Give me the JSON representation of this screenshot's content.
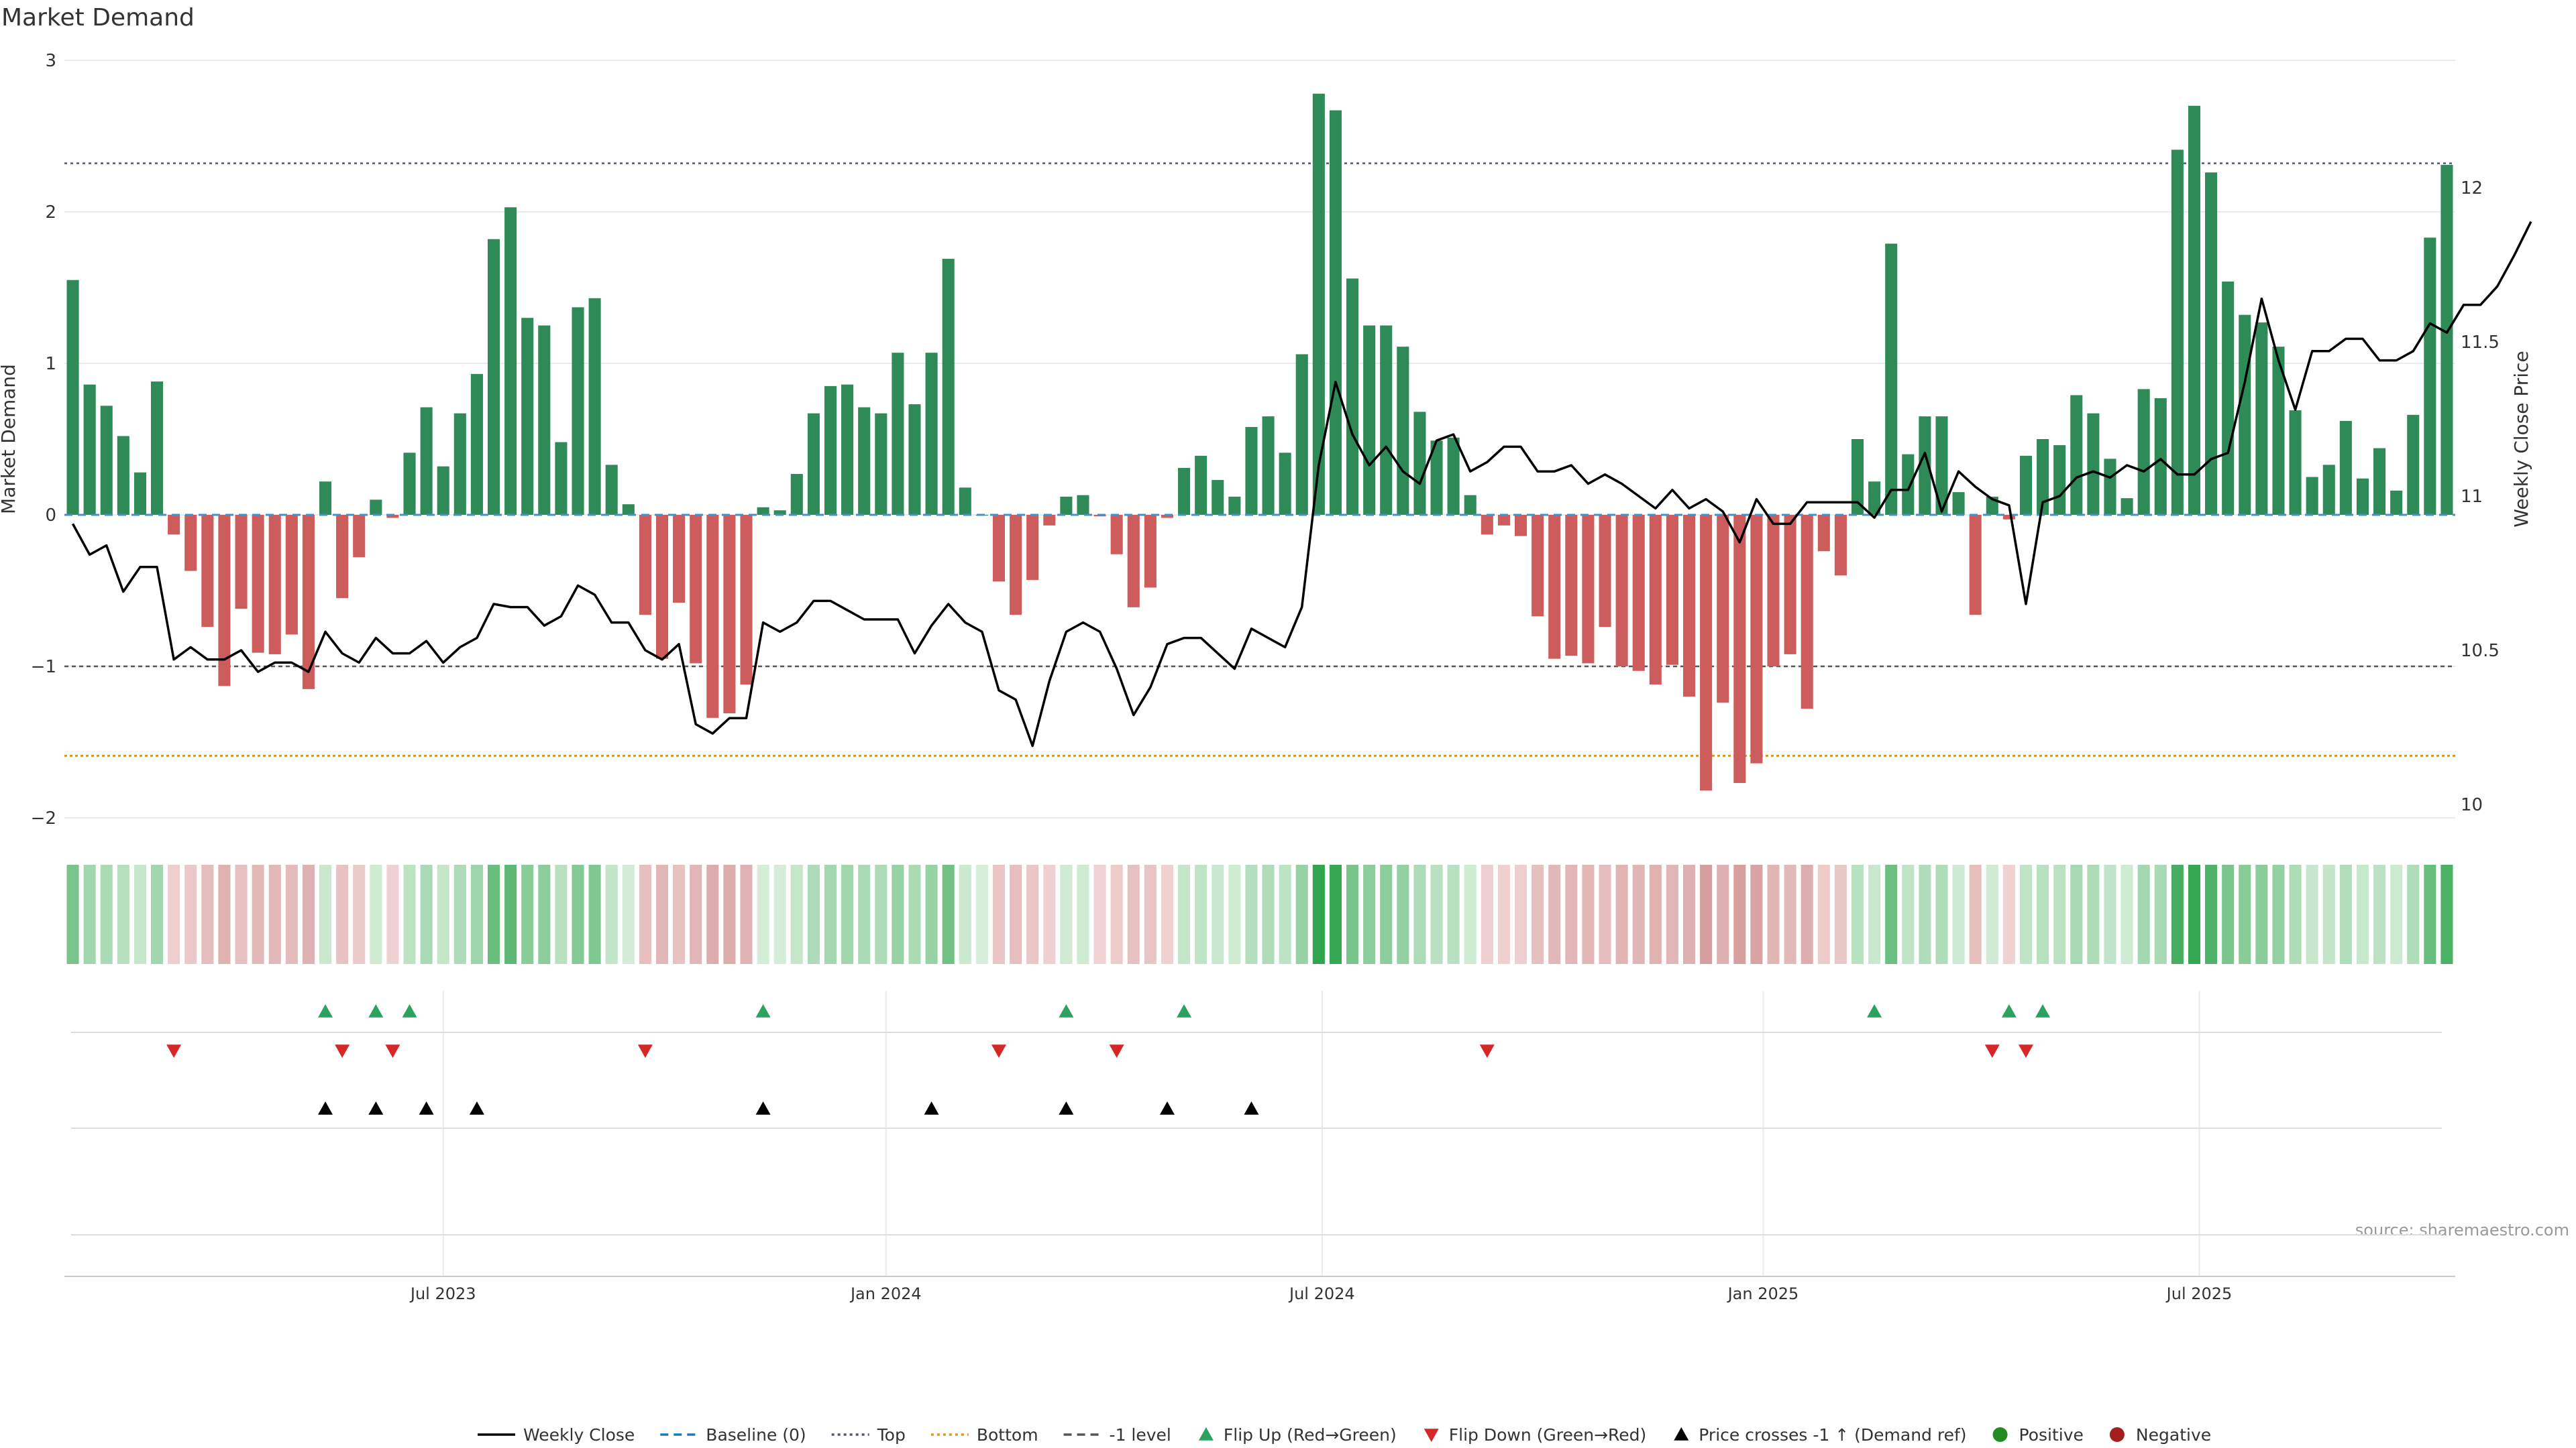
{
  "chart_data": {
    "type": "bar",
    "title": "Market Demand",
    "ylabel": "Market Demand",
    "y2label": "Weekly Close Price",
    "ylim": [
      -2,
      3
    ],
    "y2lim": [
      10,
      12.5
    ],
    "yticks": [
      3,
      2,
      1,
      0,
      -1,
      -2
    ],
    "ytick_labels": [
      "3",
      "2",
      "1",
      "0",
      "−1",
      "−2"
    ],
    "y2ticks": [
      10,
      10.5,
      11,
      11.5,
      12
    ],
    "y2tick_labels": [
      "10",
      "10.5",
      "11",
      "11.5",
      "12"
    ],
    "x_ticks": [
      {
        "week": 22,
        "label": "Jul 2023"
      },
      {
        "week": 48.3,
        "label": "Jan 2024"
      },
      {
        "week": 74.2,
        "label": "Jul 2024"
      },
      {
        "week": 100.4,
        "label": "Jan 2025"
      },
      {
        "week": 126.3,
        "label": "Jul 2025"
      }
    ],
    "reference_lines": {
      "top": 2.32,
      "bottom": -1.59,
      "minus_one": -1,
      "baseline": 0
    },
    "demand": [
      1.55,
      0.86,
      0.72,
      0.52,
      0.28,
      0.88,
      -0.13,
      -0.37,
      -0.74,
      -1.13,
      -0.62,
      -0.91,
      -0.92,
      -0.79,
      -1.15,
      0.22,
      -0.55,
      -0.28,
      0.1,
      -0.02,
      0.41,
      0.71,
      0.32,
      0.67,
      0.93,
      1.82,
      2.03,
      1.3,
      1.25,
      0.48,
      1.37,
      1.43,
      0.33,
      0.07,
      -0.66,
      -0.95,
      -0.58,
      -0.98,
      -1.34,
      -1.31,
      -1.12,
      0.05,
      0.03,
      0.27,
      0.67,
      0.85,
      0.86,
      0.71,
      0.67,
      1.07,
      0.73,
      1.07,
      1.69,
      0.18,
      0.0,
      -0.44,
      -0.66,
      -0.43,
      -0.07,
      0.12,
      0.13,
      -0.01,
      -0.26,
      -0.61,
      -0.48,
      -0.02,
      0.31,
      0.39,
      0.23,
      0.12,
      0.58,
      0.65,
      0.41,
      1.06,
      2.78,
      2.67,
      1.56,
      1.25,
      1.25,
      1.11,
      0.68,
      0.49,
      0.51,
      0.13,
      -0.13,
      -0.07,
      -0.14,
      -0.67,
      -0.95,
      -0.93,
      -0.98,
      -0.74,
      -1.0,
      -1.03,
      -1.12,
      -0.99,
      -1.2,
      -1.82,
      -1.24,
      -1.77,
      -1.64,
      -1.0,
      -0.92,
      -1.28,
      -0.24,
      -0.4,
      0.5,
      0.22,
      1.79,
      0.4,
      0.65,
      0.65,
      0.15,
      -0.66,
      0.12,
      -0.03,
      0.39,
      0.5,
      0.46,
      0.79,
      0.67,
      0.37,
      0.11,
      0.83,
      0.77,
      2.41,
      2.7,
      2.26,
      1.54,
      1.32,
      1.27,
      1.11,
      0.69,
      0.25,
      0.33,
      0.62,
      0.24,
      0.44,
      0.16,
      0.66,
      1.83,
      2.31
    ],
    "weekly_close": [
      10.91,
      10.81,
      10.84,
      10.69,
      10.77,
      10.77,
      10.47,
      10.51,
      10.47,
      10.47,
      10.5,
      10.43,
      10.46,
      10.46,
      10.43,
      10.56,
      10.49,
      10.46,
      10.54,
      10.49,
      10.49,
      10.53,
      10.46,
      10.51,
      10.54,
      10.65,
      10.64,
      10.64,
      10.58,
      10.61,
      10.71,
      10.68,
      10.59,
      10.59,
      10.5,
      10.47,
      10.52,
      10.26,
      10.23,
      10.28,
      10.28,
      10.59,
      10.56,
      10.59,
      10.66,
      10.66,
      10.63,
      10.6,
      10.6,
      10.6,
      10.49,
      10.58,
      10.65,
      10.59,
      10.56,
      10.37,
      10.34,
      10.19,
      10.4,
      10.56,
      10.59,
      10.56,
      10.44,
      10.29,
      10.38,
      10.52,
      10.54,
      10.54,
      10.49,
      10.44,
      10.57,
      10.54,
      10.51,
      10.64,
      11.1,
      11.37,
      11.2,
      11.1,
      11.16,
      11.08,
      11.04,
      11.18,
      11.2,
      11.08,
      11.11,
      11.16,
      11.16,
      11.08,
      11.08,
      11.1,
      11.04,
      11.07,
      11.04,
      11.0,
      10.96,
      11.02,
      10.96,
      10.99,
      10.95,
      10.85,
      10.99,
      10.91,
      10.91,
      10.98,
      10.98,
      10.98,
      10.98,
      10.93,
      11.02,
      11.02,
      11.14,
      10.95,
      11.08,
      11.03,
      10.99,
      10.97,
      10.65,
      10.98,
      11.0,
      11.06,
      11.08,
      11.06,
      11.1,
      11.08,
      11.12,
      11.07,
      11.07,
      11.12,
      11.14,
      11.37,
      11.64,
      11.44,
      11.28,
      11.47,
      11.47,
      11.51,
      11.51,
      11.44,
      11.44,
      11.47,
      11.56,
      11.53,
      11.62,
      11.62,
      11.68,
      11.78,
      11.89
    ],
    "flip_up_weeks": [
      15,
      18,
      20,
      41,
      59,
      66,
      107,
      115,
      117
    ],
    "flip_down_weeks": [
      6,
      16,
      19,
      34,
      55,
      62,
      84,
      114,
      116
    ],
    "price_cross_weeks": [
      15,
      18,
      21,
      24,
      41,
      51,
      59,
      65,
      70
    ],
    "legend": [
      {
        "label": "Weekly Close",
        "kind": "solid-line",
        "color": "#000000"
      },
      {
        "label": "Baseline (0)",
        "kind": "dashed-line",
        "color": "#1f77b4"
      },
      {
        "label": "Top",
        "kind": "dotted-line",
        "color": "#555577"
      },
      {
        "label": "Bottom",
        "kind": "dotted-line",
        "color": "#d99a1e"
      },
      {
        "label": "-1 level",
        "kind": "dashed-line",
        "color": "#555555"
      },
      {
        "label": "Flip Up (Red→Green)",
        "kind": "triangle-up",
        "color": "#2ca25f"
      },
      {
        "label": "Flip Down (Green→Red)",
        "kind": "triangle-down",
        "color": "#d62728"
      },
      {
        "label": "Price crosses -1 ↑ (Demand ref)",
        "kind": "triangle-up",
        "color": "#000000"
      },
      {
        "label": "Positive",
        "kind": "dot",
        "color": "#228b22"
      },
      {
        "label": "Negative",
        "kind": "dot",
        "color": "#a31f1f"
      }
    ],
    "source": "source: sharemaestro.com",
    "colors": {
      "positive": "#2e8b57",
      "negative": "#cd5c5c",
      "grid": "#ebebeb"
    }
  }
}
